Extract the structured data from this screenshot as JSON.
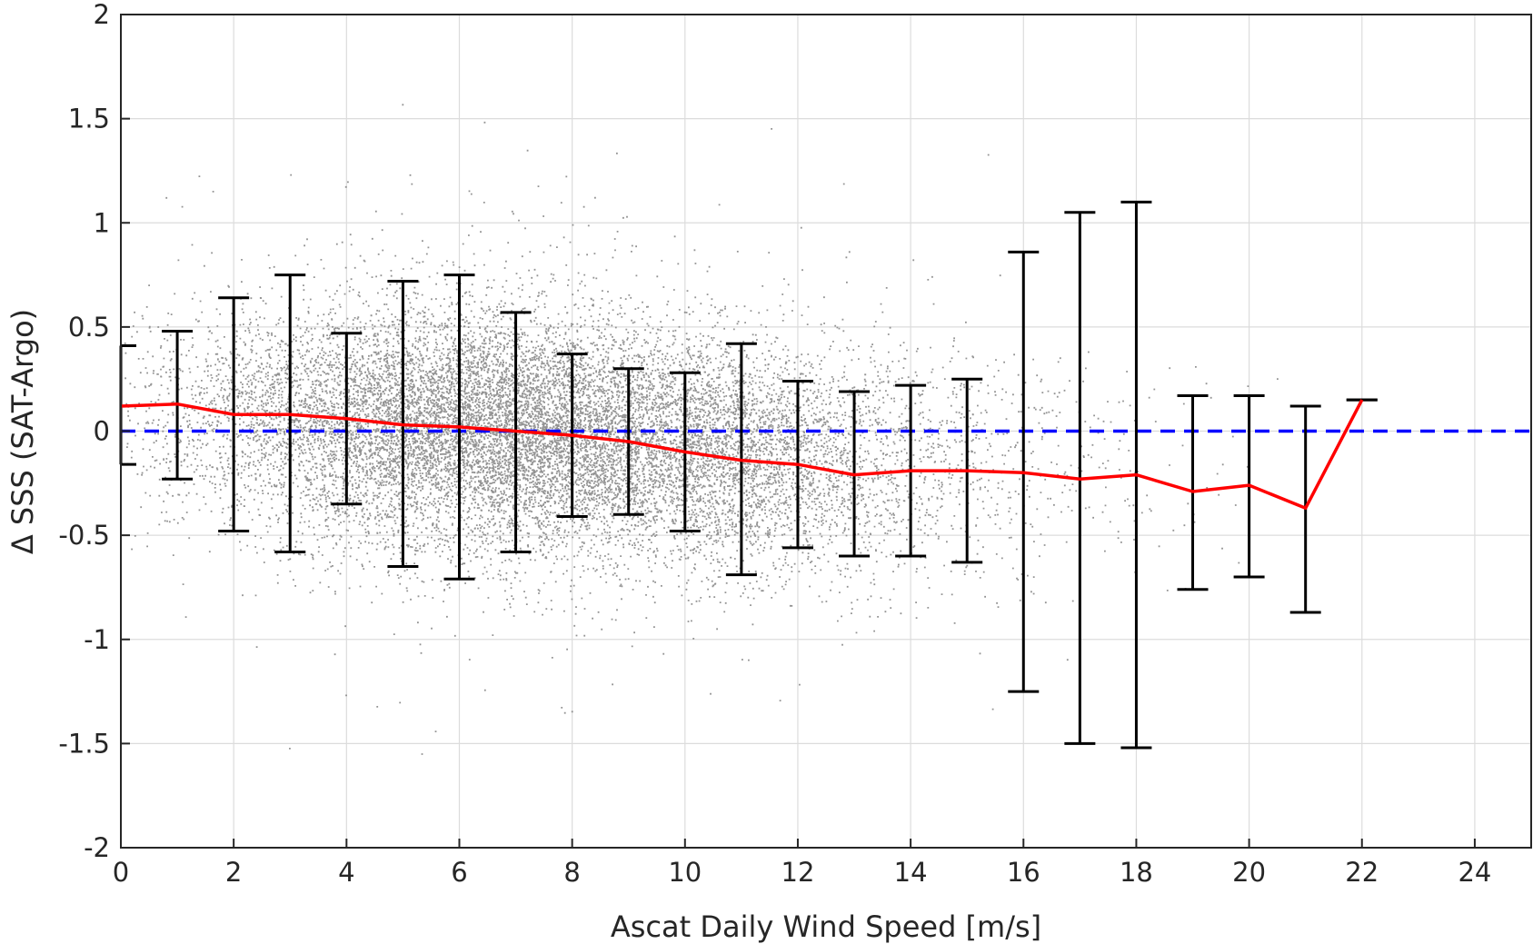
{
  "chart_data": {
    "type": "scatter",
    "title": "",
    "xlabel": "Ascat Daily Wind Speed [m/s]",
    "ylabel": "Δ SSS (SAT-Argo)",
    "xlim": [
      0,
      25
    ],
    "ylim": [
      -2,
      2
    ],
    "xticks": [
      0,
      2,
      4,
      6,
      8,
      10,
      12,
      14,
      16,
      18,
      20,
      22,
      24
    ],
    "yticks": [
      2,
      1.5,
      1,
      0.5,
      0,
      -0.5,
      -1,
      -1.5,
      -2
    ],
    "ytick_labels": [
      "2",
      "1.5",
      "1",
      "0.5",
      "0",
      "-0.5",
      "-1",
      "-1.5",
      "-2"
    ],
    "grid": true,
    "colors": {
      "scatter": "#808080",
      "mean_line": "#ff0000",
      "zero_line": "#0000ff",
      "error_bars": "#000000"
    },
    "scatter_note": "dense cloud of grey points, concentrated between 2 and 14 m/s and between -0.7 and 0.7",
    "zero_line": {
      "y": 0,
      "style": "dashed"
    },
    "series": [
      {
        "kind": "mean_line",
        "x": [
          0,
          1,
          2,
          3,
          4,
          5,
          6,
          7,
          8,
          9,
          10,
          11,
          12,
          13,
          14,
          15,
          16,
          17,
          18,
          19,
          20,
          21,
          22
        ],
        "y": [
          0.12,
          0.13,
          0.08,
          0.08,
          0.06,
          0.03,
          0.02,
          0.0,
          -0.02,
          -0.05,
          -0.1,
          -0.14,
          -0.16,
          -0.21,
          -0.19,
          -0.19,
          -0.2,
          -0.23,
          -0.21,
          -0.29,
          -0.26,
          -0.37,
          0.15
        ]
      },
      {
        "kind": "error_bars",
        "x": [
          0,
          1,
          2,
          3,
          4,
          5,
          6,
          7,
          8,
          9,
          10,
          11,
          12,
          13,
          14,
          15,
          16,
          17,
          18,
          19,
          20,
          21,
          22
        ],
        "upper": [
          0.41,
          0.48,
          0.64,
          0.75,
          0.47,
          0.72,
          0.75,
          0.57,
          0.37,
          0.3,
          0.28,
          0.42,
          0.24,
          0.19,
          0.22,
          0.25,
          0.86,
          1.05,
          1.1,
          0.17,
          0.17,
          0.12,
          0.15
        ],
        "lower": [
          -0.16,
          -0.23,
          -0.48,
          -0.58,
          -0.35,
          -0.65,
          -0.71,
          -0.58,
          -0.41,
          -0.4,
          -0.48,
          -0.69,
          -0.56,
          -0.6,
          -0.6,
          -0.63,
          -1.25,
          -1.5,
          -1.52,
          -0.76,
          -0.7,
          -0.87,
          0.15
        ]
      }
    ]
  }
}
